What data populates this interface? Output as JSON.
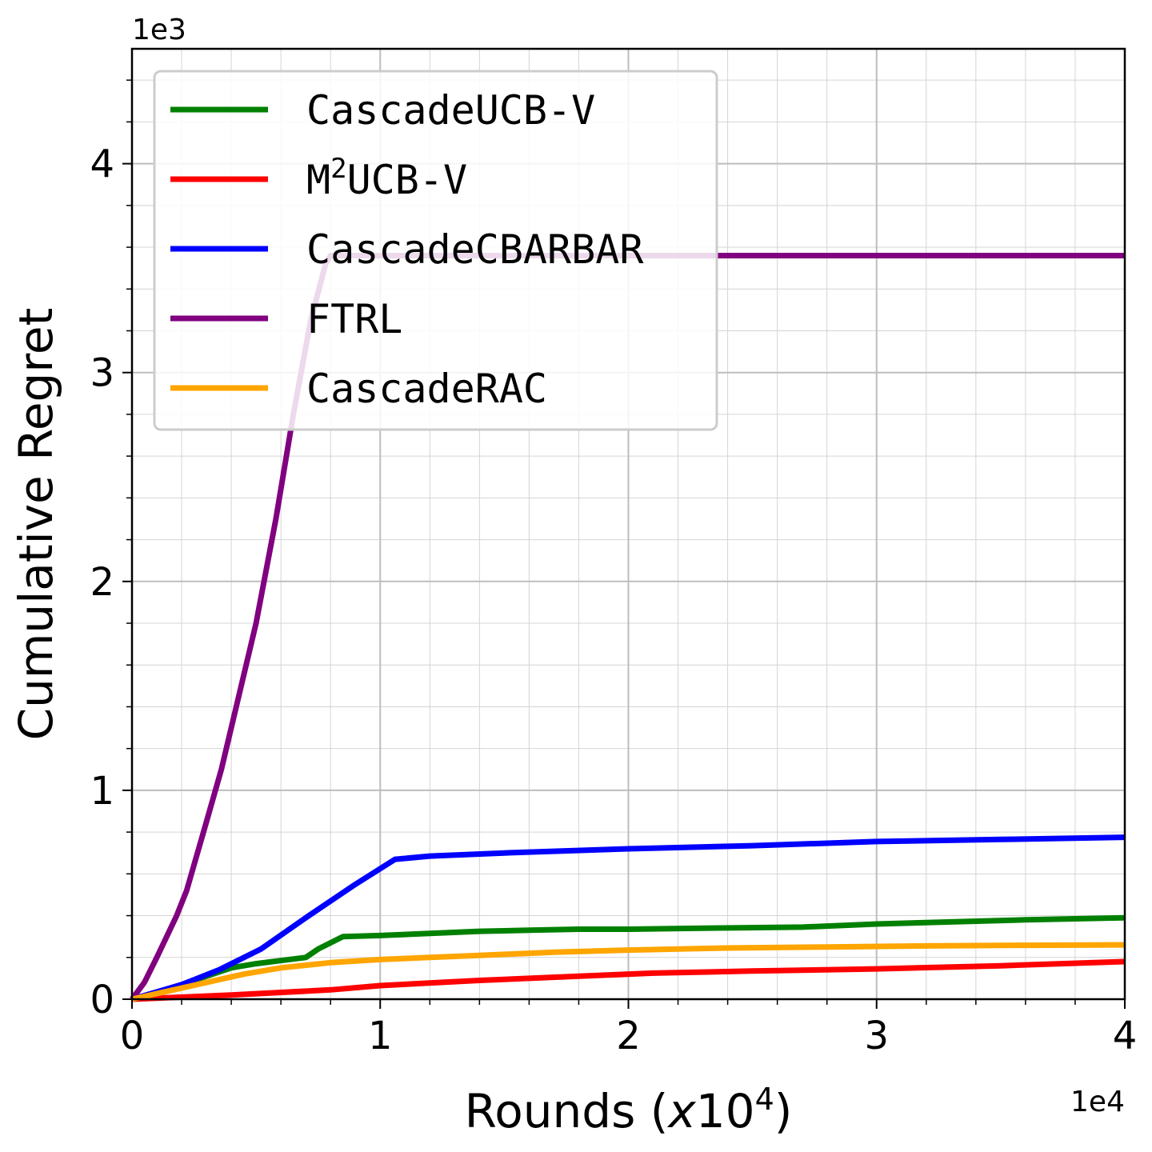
{
  "chart_data": {
    "type": "line",
    "title": "",
    "xlabel": {
      "prefix": "Rounds (",
      "var": "x",
      "base": "10",
      "exp": "4",
      "suffix": ")"
    },
    "ylabel": "Cumulative Regret",
    "x_offset_text": "1e4",
    "y_offset_text": "1e3",
    "xlim": [
      0,
      4
    ],
    "ylim": [
      0,
      4.55
    ],
    "x_ticks": [
      0,
      1,
      2,
      3,
      4
    ],
    "y_ticks": [
      0,
      1,
      2,
      3,
      4
    ],
    "x_minor_step": 0.2,
    "y_minor_step": 0.2,
    "grid": true,
    "legend_position": "upper-left",
    "series": [
      {
        "name": "CascadeUCB-V",
        "legend": {
          "text": "CascadeUCB-V"
        },
        "color": "#008000",
        "x": [
          0,
          0.1,
          0.2,
          0.3,
          0.4,
          0.5,
          0.6,
          0.7,
          0.75,
          0.8,
          0.85,
          1.0,
          1.2,
          1.4,
          1.6,
          1.8,
          2.0,
          2.3,
          2.7,
          3.0,
          3.3,
          3.6,
          4.0
        ],
        "y": [
          0,
          0.03,
          0.07,
          0.11,
          0.15,
          0.17,
          0.185,
          0.2,
          0.24,
          0.27,
          0.3,
          0.305,
          0.315,
          0.325,
          0.33,
          0.335,
          0.335,
          0.34,
          0.345,
          0.36,
          0.37,
          0.38,
          0.39
        ]
      },
      {
        "name": "M2UCB-V",
        "legend": {
          "base": "M",
          "sup": "2",
          "rest": "UCB-V"
        },
        "color": "#ff0000",
        "x": [
          0,
          0.4,
          0.8,
          1.0,
          1.4,
          1.8,
          2.1,
          2.5,
          3.0,
          3.5,
          4.0
        ],
        "y": [
          0,
          0.02,
          0.045,
          0.065,
          0.09,
          0.11,
          0.125,
          0.135,
          0.145,
          0.16,
          0.18
        ]
      },
      {
        "name": "CascadeCBARBAR",
        "legend": {
          "text": "CascadeCBARBAR"
        },
        "color": "#0000ff",
        "x": [
          0,
          0.2,
          0.35,
          0.52,
          0.7,
          0.9,
          1.06,
          1.2,
          1.5,
          2.0,
          2.5,
          3.0,
          3.5,
          4.0
        ],
        "y": [
          0,
          0.07,
          0.14,
          0.24,
          0.39,
          0.55,
          0.67,
          0.685,
          0.7,
          0.72,
          0.735,
          0.755,
          0.765,
          0.775
        ]
      },
      {
        "name": "FTRL",
        "legend": {
          "text": "FTRL"
        },
        "color": "#800080",
        "x": [
          0,
          0.05,
          0.1,
          0.18,
          0.22,
          0.3,
          0.36,
          0.42,
          0.5,
          0.58,
          0.65,
          0.72,
          0.78,
          0.8,
          0.85,
          1.0,
          2.0,
          3.0,
          4.0
        ],
        "y": [
          0,
          0.08,
          0.2,
          0.4,
          0.52,
          0.85,
          1.1,
          1.4,
          1.8,
          2.3,
          2.8,
          3.25,
          3.52,
          3.56,
          3.56,
          3.56,
          3.56,
          3.56,
          3.56
        ]
      },
      {
        "name": "CascadeRAC",
        "legend": {
          "text": "CascadeRAC"
        },
        "color": "#ffa500",
        "x": [
          0,
          0.15,
          0.3,
          0.45,
          0.6,
          0.8,
          1.0,
          1.2,
          1.4,
          1.7,
          2.0,
          2.4,
          2.8,
          3.2,
          3.6,
          4.0
        ],
        "y": [
          0,
          0.04,
          0.08,
          0.12,
          0.15,
          0.175,
          0.19,
          0.2,
          0.21,
          0.225,
          0.235,
          0.245,
          0.25,
          0.255,
          0.258,
          0.26
        ]
      }
    ]
  }
}
